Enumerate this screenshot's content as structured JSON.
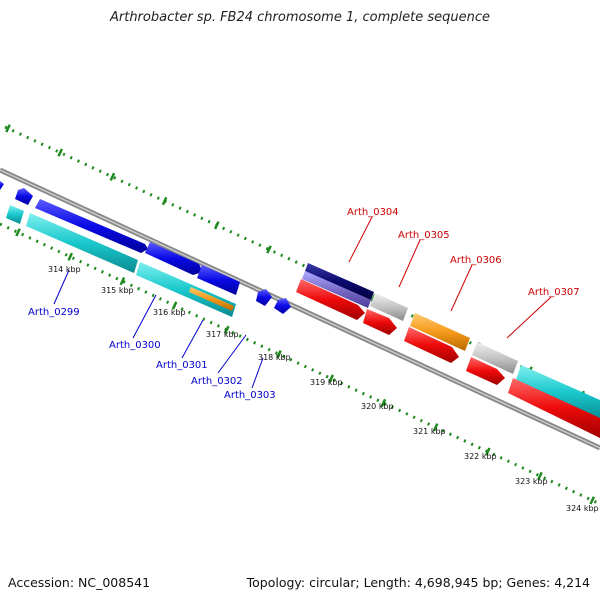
{
  "title": "Arthrobacter sp. FB24 chromosome 1, complete sequence",
  "accession": "Accession: NC_008541",
  "summary": "Topology: circular; Length: 4,698,945 bp; Genes: 4,214",
  "colors": {
    "backbone": "#8a8a8a",
    "tick": "#1f8a1f",
    "label_blue": "#0000cc",
    "label_red": "#cc0000",
    "gene_blue": "#0a0ae6",
    "gene_navy": "#0a0a6e",
    "gene_cyan": "#19c8cc",
    "gene_orange": "#f59a1a",
    "gene_red": "#ee0a0a",
    "gene_grey": "#c4c4c4",
    "gene_violet": "#7a6cc8"
  },
  "scale_labels": [
    "314 kbp",
    "315 kbp",
    "316 kbp",
    "317 kbp",
    "318 kbp",
    "319 kbp",
    "320 kbp",
    "321 kbp",
    "322 kbp",
    "323 kbp",
    "324 kbp"
  ],
  "gene_labels_blue": [
    "Arth_0299",
    "Arth_0300",
    "Arth_0301",
    "Arth_0302",
    "Arth_0303"
  ],
  "gene_labels_red": [
    "Arth_0304",
    "Arth_0305",
    "Arth_0306",
    "Arth_0307"
  ]
}
